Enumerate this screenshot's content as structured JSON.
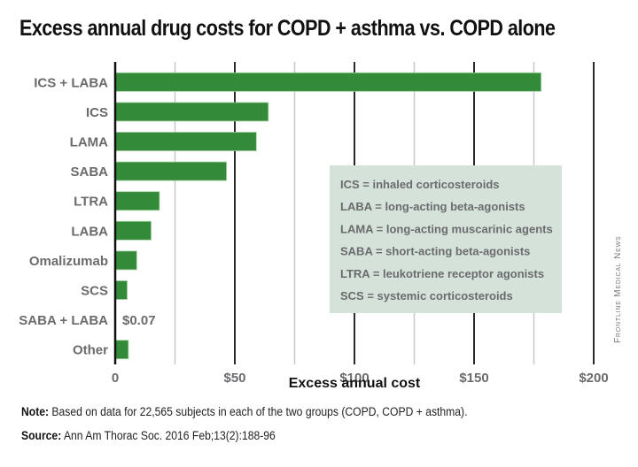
{
  "chart_data": {
    "type": "bar",
    "orientation": "horizontal",
    "title": "Excess annual drug costs for COPD + asthma vs. COPD alone",
    "xlabel": "Excess annual cost",
    "ylabel": "",
    "categories": [
      "ICS + LABA",
      "ICS",
      "LAMA",
      "SABA",
      "LTRA",
      "LABA",
      "Omalizumab",
      "SCS",
      "SABA + LABA",
      "Other"
    ],
    "values": [
      178,
      64,
      59,
      46.5,
      18.5,
      15,
      9,
      5,
      0.07,
      5.5
    ],
    "xlim": [
      0,
      200
    ],
    "xticks": [
      0,
      50,
      100,
      150,
      200
    ],
    "xtick_labels": [
      "0",
      "$50",
      "$100",
      "$150",
      "$200"
    ],
    "grid": true,
    "data_labels": [
      {
        "category": "SABA + LABA",
        "text": "$0.07"
      }
    ],
    "bar_color": "#338a38",
    "legend": {
      "placement": "center-right",
      "background": "#d4e2da",
      "entries": [
        "ICS = inhaled corticosteroids",
        "LABA = long-acting beta-agonists",
        "LAMA = long-acting muscarinic agents",
        "SABA = short-acting beta-agonists",
        "LTRA = leukotriene receptor agonists",
        "SCS = systemic corticosteroids"
      ]
    }
  },
  "footer": {
    "note_label": "Note:",
    "note_text": " Based on data for 22,565 subjects in each of the two groups (COPD, COPD + asthma).",
    "source_label": "Source:",
    "source_text": " Ann Am Thorac Soc. 2016 Feb;13(2):188-96"
  },
  "credit": "Frontline Medical News"
}
